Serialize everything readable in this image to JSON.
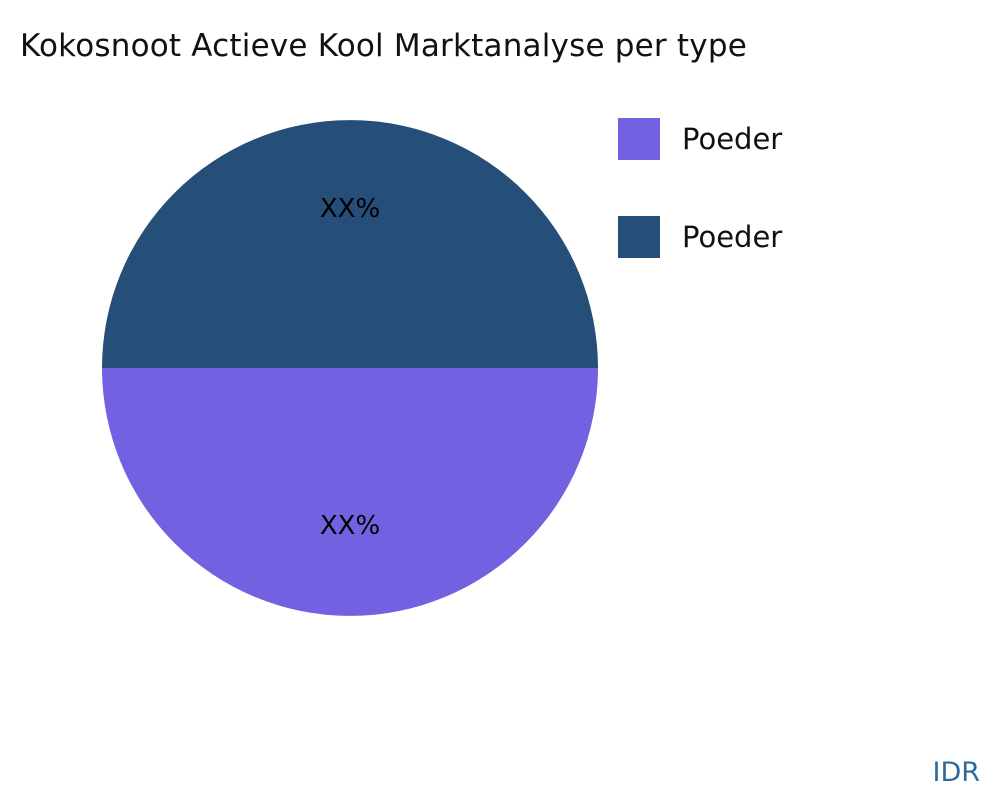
{
  "title": "Kokosnoot Actieve Kool Marktanalyse per type",
  "footer": {
    "currency_label": "IDR",
    "currency_color": "#2d6b9c"
  },
  "chart_data": {
    "type": "pie",
    "title": "Kokosnoot Actieve Kool Marktanalyse per type",
    "labels": [
      "Poeder",
      "Poeder"
    ],
    "values": [
      50,
      50
    ],
    "slice_labels": [
      "XX%",
      "XX%"
    ],
    "colors": [
      "#7261e0",
      "#254e78"
    ],
    "start_angle_deg": 0,
    "direction": "clockwise",
    "legend_position": "right",
    "grid": false
  }
}
